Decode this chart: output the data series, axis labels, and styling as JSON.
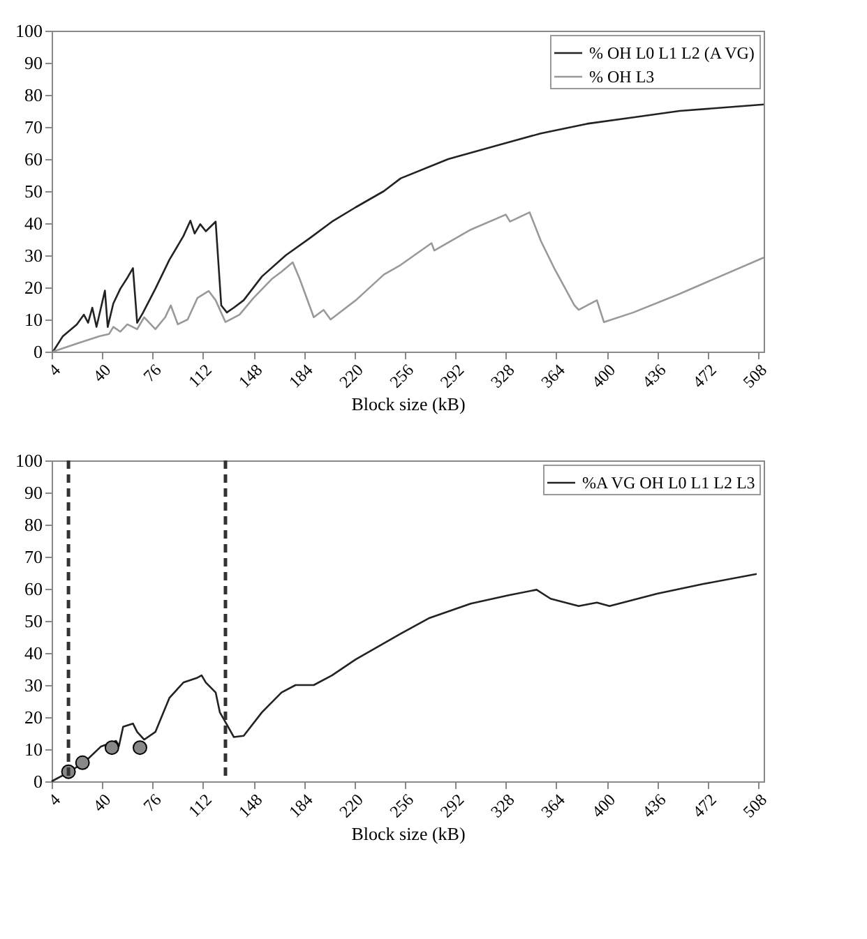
{
  "chart_data": [
    {
      "type": "line",
      "xlabel": "Block size (kB)",
      "xlim": [
        4,
        512
      ],
      "xticks": [
        4,
        40,
        76,
        112,
        148,
        184,
        220,
        256,
        292,
        328,
        364,
        400,
        436,
        472,
        508
      ],
      "ylim": [
        0,
        100
      ],
      "yticks": [
        0,
        10,
        20,
        30,
        40,
        50,
        60,
        70,
        80,
        90,
        100
      ],
      "grid": false,
      "legend": "top right",
      "series": [
        {
          "name": "% OH L0 L1 L2 (A VG)",
          "color": "#222222",
          "x": [
            5,
            12,
            22,
            27,
            30,
            33,
            36,
            42,
            44,
            48,
            53,
            58,
            62,
            65,
            69,
            78,
            88,
            98,
            103,
            106,
            110,
            114,
            121,
            125,
            129,
            134,
            141,
            154,
            171,
            188,
            204,
            221,
            241,
            253,
            287,
            320,
            353,
            386,
            419,
            452,
            512
          ],
          "values": [
            0,
            4.8,
            8.5,
            11.5,
            9,
            13.7,
            7.7,
            19,
            7.7,
            15,
            19.6,
            23,
            26,
            9,
            12,
            19.6,
            28.6,
            36,
            40.8,
            36.8,
            39.7,
            37.5,
            40.5,
            14.4,
            12.2,
            13.7,
            16,
            23.4,
            30,
            35.3,
            40.5,
            45,
            50,
            54,
            60,
            64,
            68,
            71,
            73,
            75,
            77
          ]
        },
        {
          "name": "% OH L3",
          "color": "#999999",
          "x": [
            5,
            22,
            38,
            45,
            48,
            53,
            58,
            65,
            70,
            78,
            85,
            89,
            94,
            101,
            108,
            116,
            121,
            128,
            138,
            148,
            161,
            168,
            176,
            181,
            191,
            198,
            203,
            221,
            241,
            253,
            275,
            277,
            303,
            328,
            331,
            345,
            353,
            363,
            377,
            380,
            393,
            398,
            419,
            452,
            512
          ],
          "values": [
            0,
            2.5,
            4.8,
            5.5,
            7.7,
            6.2,
            8.5,
            7,
            10.7,
            7,
            10.7,
            14.4,
            8.5,
            10,
            16.7,
            18.9,
            16,
            9.2,
            11.5,
            16.7,
            22.6,
            24.9,
            27.8,
            22.6,
            10.7,
            13,
            10,
            16,
            24,
            27,
            33.8,
            31.5,
            38,
            42.7,
            40.5,
            43.4,
            34.5,
            25.6,
            14.4,
            13,
            16,
            9.2,
            12.2,
            18,
            29.3
          ]
        }
      ]
    },
    {
      "type": "line",
      "xlabel": "Block size (kB)",
      "xlim": [
        4,
        512
      ],
      "xticks": [
        4,
        40,
        76,
        112,
        148,
        184,
        220,
        256,
        292,
        328,
        364,
        400,
        436,
        472,
        508
      ],
      "ylim": [
        0,
        100
      ],
      "yticks": [
        0,
        10,
        20,
        30,
        40,
        50,
        60,
        70,
        80,
        90,
        100
      ],
      "grid": false,
      "legend": "top right",
      "ref_lines": [
        {
          "axis": "x",
          "value": 16,
          "color": "#333333",
          "line_style": "dashed"
        },
        {
          "axis": "x",
          "value": 128,
          "color": "#333333",
          "line_style": "dashed"
        }
      ],
      "series": [
        {
          "name": "%A VG OH L0 L1 L2 L3",
          "color": "#222222",
          "x": [
            4,
            16,
            28,
            39,
            50,
            52,
            55,
            62,
            65,
            70,
            78,
            88,
            98,
            108,
            111,
            114,
            121,
            124,
            129,
            134,
            141,
            154,
            168,
            178,
            191,
            204,
            221,
            253,
            273,
            303,
            330,
            350,
            360,
            380,
            393,
            402,
            436,
            469,
            507
          ],
          "values": [
            0,
            2.8,
            6.2,
            10.8,
            12.6,
            11,
            17,
            18,
            15.4,
            13,
            15.4,
            26,
            30.8,
            32.3,
            33,
            30.8,
            27.7,
            21.5,
            17.7,
            13.8,
            14.2,
            21.5,
            27.7,
            30,
            30,
            33,
            38,
            46,
            50.8,
            55.4,
            58,
            59.7,
            56.9,
            54.6,
            55.7,
            54.6,
            58.5,
            61.5,
            64.6
          ]
        },
        {
          "type": "scatter",
          "marker": "circle",
          "color": "#888888",
          "x": [
            16,
            26,
            47,
            67
          ],
          "values": [
            3,
            5.8,
            10.5,
            10.5
          ]
        }
      ]
    }
  ]
}
